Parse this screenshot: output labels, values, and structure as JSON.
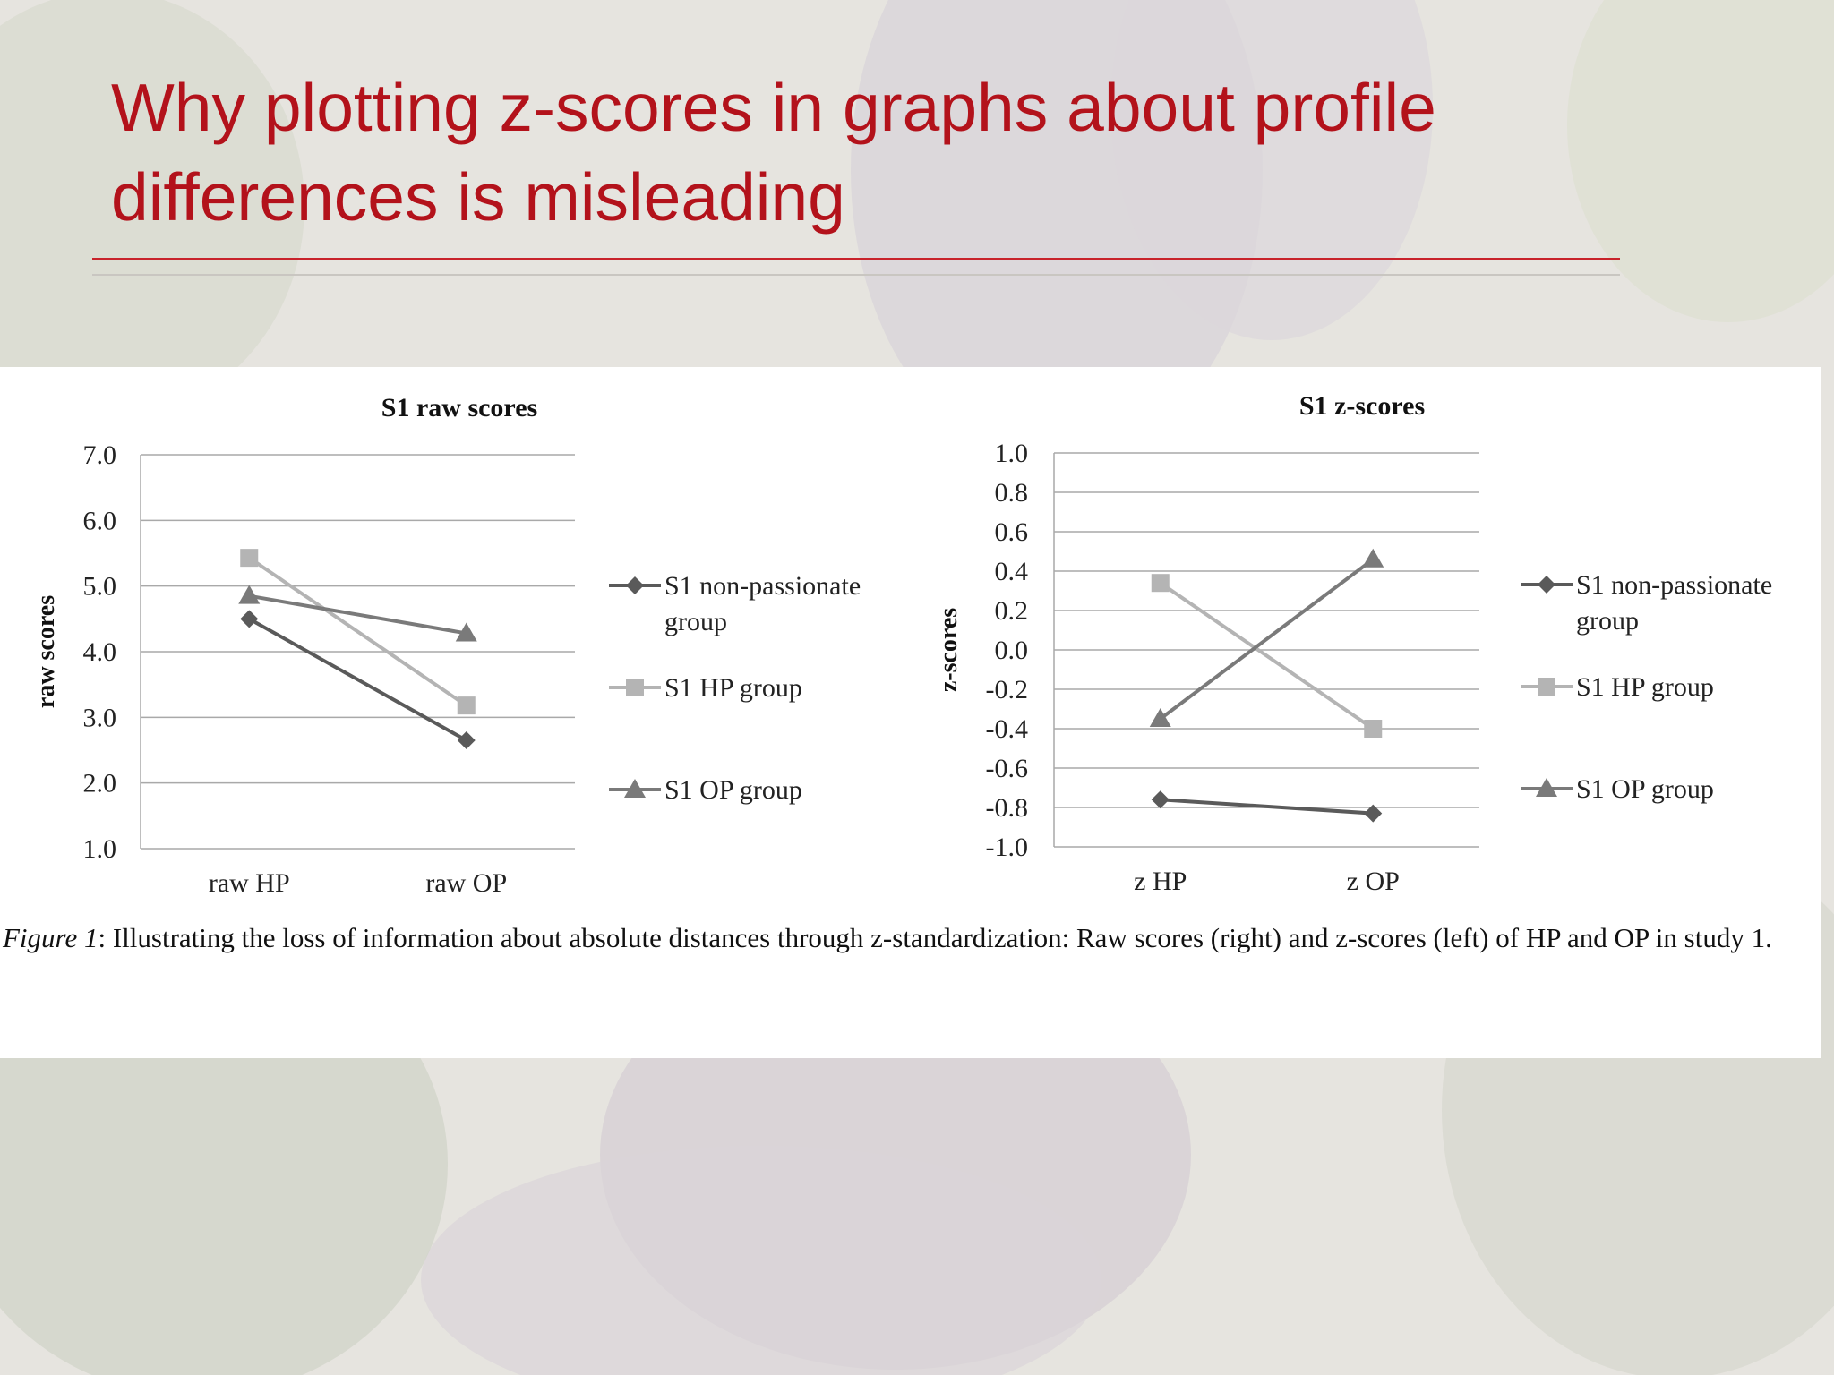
{
  "slide": {
    "title": "Why plotting z-scores in graphs about profile differences is misleading",
    "accent_color": "#b3121b"
  },
  "chart_data": [
    {
      "type": "line",
      "title": "S1 raw scores",
      "ylabel": "raw scores",
      "xlabel": "",
      "categories": [
        "raw HP",
        "raw OP"
      ],
      "ylim": [
        1.0,
        7.0
      ],
      "yticks": [
        "7.0",
        "6.0",
        "5.0",
        "4.0",
        "3.0",
        "2.0",
        "1.0"
      ],
      "grid": true,
      "legend_position": "right",
      "series": [
        {
          "name": "S1 non-passionate group",
          "values": [
            4.5,
            2.65
          ],
          "marker": "diamond",
          "color": "#5a5a5a"
        },
        {
          "name": "S1 HP group",
          "values": [
            5.43,
            3.18
          ],
          "marker": "square",
          "color": "#b4b4b4"
        },
        {
          "name": "S1 OP group",
          "values": [
            4.85,
            4.28
          ],
          "marker": "triangle",
          "color": "#7a7a7a"
        }
      ]
    },
    {
      "type": "line",
      "title": "S1 z-scores",
      "ylabel": "z-scores",
      "xlabel": "",
      "categories": [
        "z HP",
        "z OP"
      ],
      "ylim": [
        -1.0,
        1.0
      ],
      "yticks": [
        "1.0",
        "0.8",
        "0.6",
        "0.4",
        "0.2",
        "0.0",
        "-0.2",
        "-0.4",
        "-0.6",
        "-0.8",
        "-1.0"
      ],
      "grid": true,
      "legend_position": "right",
      "series": [
        {
          "name": "S1 non-passionate group",
          "values": [
            -0.76,
            -0.83
          ],
          "marker": "diamond",
          "color": "#5a5a5a"
        },
        {
          "name": "S1 HP group",
          "values": [
            0.34,
            -0.4
          ],
          "marker": "square",
          "color": "#b4b4b4"
        },
        {
          "name": "S1 OP group",
          "values": [
            -0.35,
            0.46
          ],
          "marker": "triangle",
          "color": "#7a7a7a"
        }
      ]
    }
  ],
  "legend_lines": [
    [
      "S1 non-passionate",
      "group"
    ],
    [
      "S1 HP group"
    ],
    [
      "S1 OP group"
    ]
  ],
  "caption": {
    "label": "Figure 1",
    "text": ": Illustrating the loss of information about absolute distances through z-standardization: Raw scores (right) and z-scores (left) of HP and OP in study 1."
  }
}
